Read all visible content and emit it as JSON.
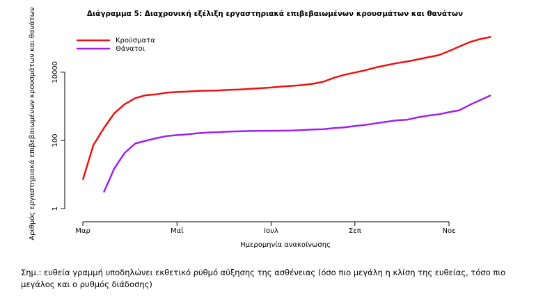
{
  "chart_data": {
    "type": "line",
    "title": "Διάγραμμα 5: Διαχρονική εξέλιξη εργαστηριακά επιβεβαιωμένων κρουσμάτων και θανάτων",
    "x_label": "Ημερομηνία ανακοίνωσης",
    "y_label": "Αριθμός εργαστηριακά επιβεβαιωμένων κρουσμάτων και θανάτων",
    "categories": [
      null,
      "Μαρ",
      null,
      null,
      null,
      null,
      null,
      null,
      null,
      null,
      "Μαϊ",
      null,
      null,
      null,
      null,
      null,
      null,
      null,
      null,
      "Ιουλ",
      null,
      null,
      null,
      null,
      null,
      null,
      null,
      "Σεπ",
      null,
      null,
      null,
      null,
      null,
      null,
      null,
      null,
      "Νοε",
      null,
      null,
      null,
      null
    ],
    "series": [
      {
        "name": "Κρούσματα",
        "color": "#ee1111",
        "values": [
          null,
          7,
          73,
          228,
          624,
          1156,
          1735,
          2114,
          2235,
          2517,
          2620,
          2710,
          2834,
          2878,
          2918,
          3049,
          3121,
          3266,
          3390,
          3562,
          3803,
          3983,
          4193,
          4587,
          5270,
          6858,
          8381,
          9800,
          11386,
          13730,
          15928,
          18475,
          20541,
          23651,
          27334,
          31496,
          41527,
          56698,
          76403,
          94000,
          108000
        ]
      },
      {
        "name": "Θάνατοι",
        "color": "#a020f0",
        "values": [
          null,
          null,
          null,
          3,
          15,
          43,
          81,
          98,
          116,
          134,
          143,
          151,
          163,
          171,
          175,
          183,
          185,
          190,
          191,
          192,
          193,
          195,
          202,
          210,
          213,
          230,
          242,
          266,
          285,
          317,
          350,
          388,
          405,
          473,
          534,
          581,
          673,
          769,
          1106,
          1527,
          2102
        ]
      }
    ],
    "ylim": [
      0.5,
      200000
    ],
    "yticks": [
      1,
      100,
      10000
    ],
    "log_y": true,
    "legend": "top-left"
  },
  "note": "Σημ.: ευθεία γραμμή υποδηλώνει εκθετικό ρυθμό αύξησης της ασθένειας (όσο πιο μεγάλη η κλίση της ευθείας, τόσο πιο μεγάλος και ο ρυθμός διάδοσης)"
}
